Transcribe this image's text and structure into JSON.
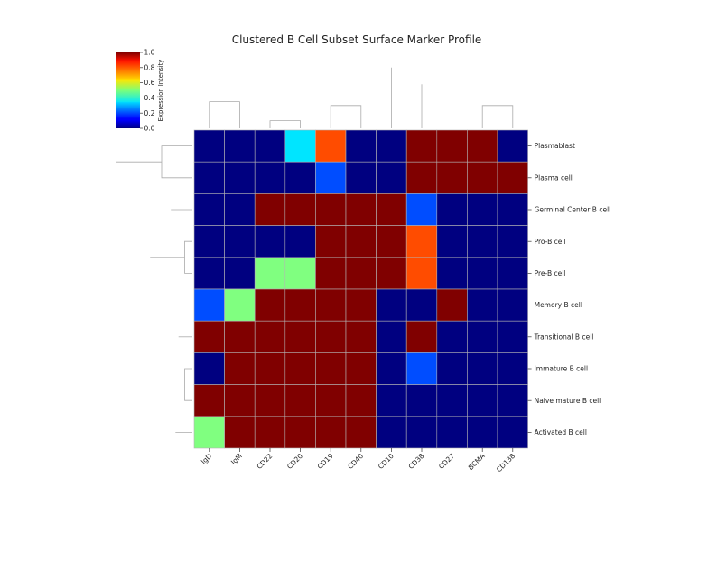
{
  "chart_data": {
    "type": "heatmap",
    "title": "Clustered B Cell Subset Surface Marker Profile",
    "columns": [
      "IgD",
      "IgM",
      "CD22",
      "CD20",
      "CD19",
      "CD40",
      "CD10",
      "CD38",
      "CD27",
      "BCMA",
      "CD138"
    ],
    "rows": [
      "Plasmablast",
      "Plasma cell",
      "Germinal Center B cell",
      "Pro-B cell",
      "Pre-B cell",
      "Memory B cell",
      "Transitional B cell",
      "Immature B cell",
      "Naive mature B cell",
      "Activated B cell"
    ],
    "values": [
      [
        0,
        0,
        0,
        0.35,
        0.8,
        0,
        0,
        1,
        1,
        1,
        0
      ],
      [
        0,
        0,
        0,
        0,
        0.2,
        0,
        0,
        1,
        1,
        1,
        1
      ],
      [
        0,
        0,
        1,
        1,
        1,
        1,
        1,
        0.2,
        0,
        0,
        0
      ],
      [
        0,
        0,
        0,
        0,
        1,
        1,
        1,
        0.8,
        0,
        0,
        0
      ],
      [
        0,
        0,
        0.5,
        0.5,
        1,
        1,
        1,
        0.8,
        0,
        0,
        0
      ],
      [
        0.2,
        0.5,
        1,
        1,
        1,
        1,
        0,
        0,
        1,
        0,
        0
      ],
      [
        1,
        1,
        1,
        1,
        1,
        1,
        0,
        1,
        0,
        0,
        0
      ],
      [
        0,
        1,
        1,
        1,
        1,
        1,
        0,
        0.2,
        0,
        0,
        0
      ],
      [
        1,
        1,
        1,
        1,
        1,
        1,
        0,
        0,
        0,
        0,
        0
      ],
      [
        0.5,
        1,
        1,
        1,
        1,
        1,
        0,
        0,
        0,
        0,
        0
      ]
    ],
    "colorbar": {
      "label": "Expression Intensity",
      "ticks": [
        "0.0",
        "0.2",
        "0.4",
        "0.6",
        "0.8",
        "1.0"
      ],
      "range": [
        0,
        1
      ],
      "colormap": "jet"
    },
    "grid": true,
    "row_dendrogram": {
      "merges": [
        [
          7,
          8,
          0.1
        ],
        [
          6,
          11,
          0.18
        ],
        [
          9,
          12,
          0.22
        ],
        [
          5,
          13,
          0.32
        ],
        [
          3,
          4,
          0.1
        ],
        [
          2,
          15,
          0.28
        ],
        [
          14,
          16,
          0.55
        ],
        [
          0,
          1,
          0.4
        ],
        [
          17,
          18,
          1.0
        ]
      ]
    },
    "col_dendrogram": {
      "merges": [
        [
          2,
          3,
          0.1
        ],
        [
          4,
          5,
          0.3
        ],
        [
          19,
          20,
          0.52
        ],
        [
          0,
          1,
          0.35
        ],
        [
          21,
          22,
          1.0
        ],
        [
          9,
          10,
          0.3
        ],
        [
          8,
          24,
          0.48
        ],
        [
          7,
          25,
          0.58
        ],
        [
          6,
          26,
          0.8
        ],
        [
          23,
          27,
          1.0
        ]
      ]
    }
  }
}
